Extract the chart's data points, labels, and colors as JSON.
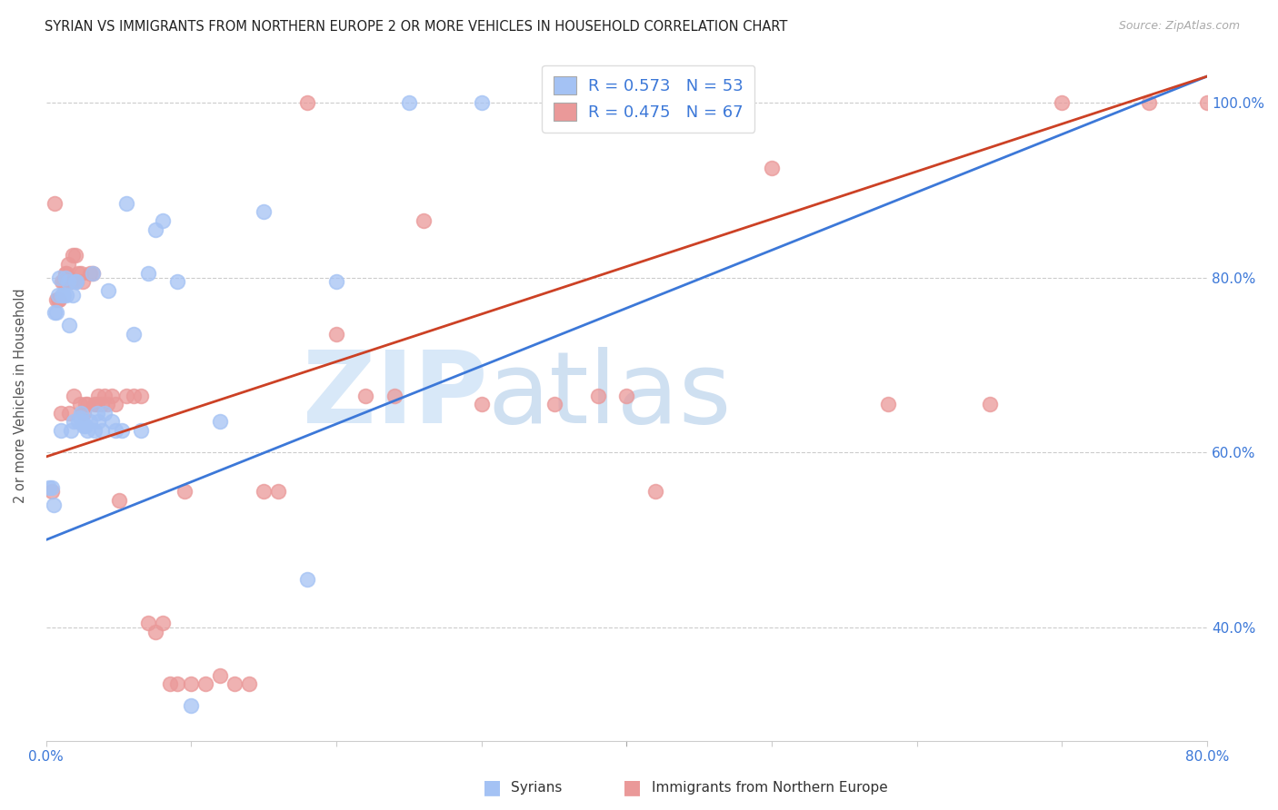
{
  "title": "SYRIAN VS IMMIGRANTS FROM NORTHERN EUROPE 2 OR MORE VEHICLES IN HOUSEHOLD CORRELATION CHART",
  "source": "Source: ZipAtlas.com",
  "ylabel": "2 or more Vehicles in Household",
  "legend_line1": "R = 0.573   N = 53",
  "legend_line2": "R = 0.475   N = 67",
  "xmin": 0.0,
  "xmax": 0.8,
  "ymin": 0.27,
  "ymax": 1.06,
  "xtick_positions": [
    0.0,
    0.1,
    0.2,
    0.3,
    0.4,
    0.5,
    0.6,
    0.7,
    0.8
  ],
  "xtick_labels": [
    "0.0%",
    "",
    "",
    "",
    "",
    "",
    "",
    "",
    "80.0%"
  ],
  "ytick_positions": [
    0.4,
    0.6,
    0.8,
    1.0
  ],
  "ytick_labels": [
    "40.0%",
    "60.0%",
    "80.0%",
    "100.0%"
  ],
  "color_syrians": "#a4c2f4",
  "color_northern": "#ea9999",
  "line_color_syrians": "#3c78d8",
  "line_color_northern": "#cc4125",
  "blue_line_x0": 0.0,
  "blue_line_y0": 0.5,
  "blue_line_x1": 0.8,
  "blue_line_y1": 1.03,
  "pink_line_x0": 0.0,
  "pink_line_y0": 0.595,
  "pink_line_x1": 0.8,
  "pink_line_y1": 1.03,
  "syrians_x": [
    0.002,
    0.004,
    0.005,
    0.006,
    0.007,
    0.008,
    0.009,
    0.01,
    0.011,
    0.012,
    0.013,
    0.014,
    0.015,
    0.016,
    0.017,
    0.018,
    0.019,
    0.02,
    0.021,
    0.022,
    0.023,
    0.024,
    0.025,
    0.026,
    0.027,
    0.028,
    0.03,
    0.032,
    0.033,
    0.035,
    0.036,
    0.038,
    0.04,
    0.043,
    0.045,
    0.048,
    0.052,
    0.055,
    0.06,
    0.065,
    0.07,
    0.075,
    0.08,
    0.09,
    0.1,
    0.12,
    0.15,
    0.18,
    0.2,
    0.25,
    0.3,
    0.38,
    0.43
  ],
  "syrians_y": [
    0.56,
    0.56,
    0.54,
    0.76,
    0.76,
    0.78,
    0.8,
    0.625,
    0.78,
    0.78,
    0.8,
    0.78,
    0.795,
    0.745,
    0.625,
    0.78,
    0.635,
    0.795,
    0.795,
    0.635,
    0.64,
    0.645,
    0.635,
    0.63,
    0.63,
    0.625,
    0.635,
    0.805,
    0.625,
    0.645,
    0.635,
    0.625,
    0.645,
    0.785,
    0.635,
    0.625,
    0.625,
    0.885,
    0.735,
    0.625,
    0.805,
    0.855,
    0.865,
    0.795,
    0.31,
    0.635,
    0.875,
    0.455,
    0.795,
    1.0,
    1.0,
    1.0,
    1.0
  ],
  "northern_x": [
    0.004,
    0.006,
    0.007,
    0.008,
    0.009,
    0.01,
    0.011,
    0.012,
    0.013,
    0.014,
    0.015,
    0.016,
    0.017,
    0.018,
    0.019,
    0.02,
    0.021,
    0.022,
    0.023,
    0.024,
    0.025,
    0.026,
    0.027,
    0.028,
    0.03,
    0.032,
    0.033,
    0.035,
    0.036,
    0.038,
    0.04,
    0.042,
    0.045,
    0.048,
    0.05,
    0.055,
    0.06,
    0.065,
    0.07,
    0.075,
    0.08,
    0.085,
    0.09,
    0.095,
    0.1,
    0.11,
    0.12,
    0.13,
    0.14,
    0.15,
    0.16,
    0.18,
    0.2,
    0.22,
    0.24,
    0.26,
    0.3,
    0.35,
    0.38,
    0.4,
    0.42,
    0.5,
    0.58,
    0.65,
    0.7,
    0.76,
    0.8
  ],
  "northern_y": [
    0.555,
    0.885,
    0.775,
    0.775,
    0.775,
    0.645,
    0.795,
    0.795,
    0.805,
    0.805,
    0.815,
    0.645,
    0.795,
    0.825,
    0.665,
    0.825,
    0.795,
    0.805,
    0.655,
    0.805,
    0.795,
    0.645,
    0.655,
    0.655,
    0.805,
    0.805,
    0.655,
    0.655,
    0.665,
    0.655,
    0.665,
    0.655,
    0.665,
    0.655,
    0.545,
    0.665,
    0.665,
    0.665,
    0.405,
    0.395,
    0.405,
    0.335,
    0.335,
    0.555,
    0.335,
    0.335,
    0.345,
    0.335,
    0.335,
    0.555,
    0.555,
    1.0,
    0.735,
    0.665,
    0.665,
    0.865,
    0.655,
    0.655,
    0.665,
    0.665,
    0.555,
    0.925,
    0.655,
    0.655,
    1.0,
    1.0,
    1.0
  ]
}
